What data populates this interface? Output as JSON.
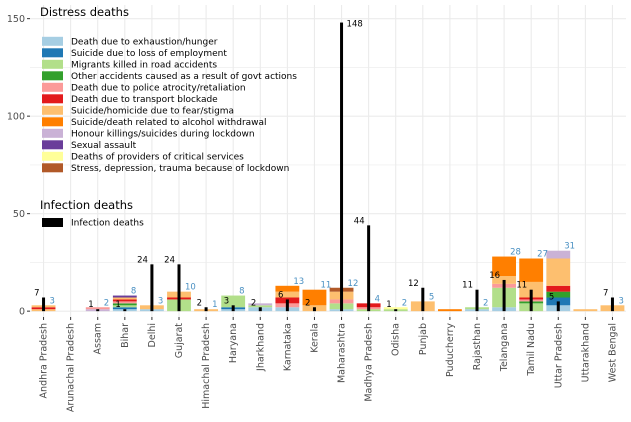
{
  "chart_data": {
    "type": "bar",
    "subtype": "stacked bar with overlaid line bars",
    "y_ticks": [
      0,
      50,
      100,
      150
    ],
    "ylim": [
      -3,
      157
    ],
    "grid": true,
    "states": [
      "Andhra Pradesh",
      "Arunachal Pradesh",
      "Assam",
      "Bihar",
      "Delhi",
      "Gujarat",
      "Himachal Pradesh",
      "Haryana",
      "Jharkhand",
      "Karnataka",
      "Kerala",
      "Maharashtra",
      "Madhya Pradesh",
      "Odisha",
      "Punjab",
      "Puducherry",
      "Rajasthan",
      "Telangana",
      "Tamil Nadu",
      "Uttar Pradesh",
      "Uttarakhand",
      "West Bengal"
    ],
    "distress_legend_title": "Distress deaths",
    "infection_legend_title": "Infection deaths",
    "infection_legend_label": "Infection deaths",
    "categories": [
      {
        "label": "Death due to exhaustion/hunger",
        "color": "#a6cee3"
      },
      {
        "label": "Suicide due to loss of employment",
        "color": "#1f78b4"
      },
      {
        "label": "Migrants killed in road accidents",
        "color": "#b2df8a"
      },
      {
        "label": "Other accidents caused as a result of govt actions",
        "color": "#33a02c"
      },
      {
        "label": "Death due to police atrocity/retaliation",
        "color": "#fb9a99"
      },
      {
        "label": "Death due to transport blockade",
        "color": "#e31a1c"
      },
      {
        "label": "Suicide/homicide due to fear/stigma",
        "color": "#fdbf6f"
      },
      {
        "label": "Suicide/death related to alcohol withdrawal",
        "color": "#ff7f00"
      },
      {
        "label": "Honour killings/suicides during lockdown",
        "color": "#cab2d6"
      },
      {
        "label": "Sexual assault",
        "color": "#6a3d9a"
      },
      {
        "label": "Deaths of providers of critical services",
        "color": "#ffff99"
      },
      {
        "label": "Stress, depression, trauma because of lockdown",
        "color": "#b15928"
      }
    ],
    "distress_series": [
      {
        "state": "Andhra Pradesh",
        "total": 3,
        "total_label": "3",
        "segments": [
          [
            6,
            1
          ],
          [
            5,
            1
          ],
          [
            6,
            1
          ]
        ]
      },
      {
        "state": "Arunachal Pradesh",
        "total": 0,
        "total_label": "",
        "segments": []
      },
      {
        "state": "Assam",
        "total": 2,
        "total_label": "2",
        "segments": [
          [
            8,
            1
          ],
          [
            4,
            1
          ]
        ]
      },
      {
        "state": "Bihar",
        "total": 8,
        "total_label": "8",
        "segments": [
          [
            0,
            1
          ],
          [
            1,
            1
          ],
          [
            2,
            1
          ],
          [
            3,
            1
          ],
          [
            4,
            1
          ],
          [
            5,
            1
          ],
          [
            6,
            1
          ],
          [
            9,
            1
          ]
        ]
      },
      {
        "state": "Delhi",
        "total": 3,
        "total_label": "3",
        "segments": [
          [
            0,
            1
          ],
          [
            6,
            2
          ]
        ]
      },
      {
        "state": "Gujarat",
        "total": 10,
        "total_label": "10",
        "segments": [
          [
            2,
            6
          ],
          [
            5,
            1
          ],
          [
            6,
            3
          ]
        ]
      },
      {
        "state": "Himachal Pradesh",
        "total": 1,
        "total_label": "1",
        "segments": [
          [
            6,
            1
          ]
        ]
      },
      {
        "state": "Haryana",
        "total": 8,
        "total_label": "8",
        "segments": [
          [
            0,
            1
          ],
          [
            1,
            1
          ],
          [
            2,
            6
          ]
        ]
      },
      {
        "state": "Jharkhand",
        "total": 4,
        "total_label": "",
        "segments": [
          [
            0,
            2
          ],
          [
            2,
            1
          ],
          [
            8,
            1
          ]
        ]
      },
      {
        "state": "Karnataka",
        "total": 13,
        "total_label": "13",
        "segments": [
          [
            0,
            2
          ],
          [
            4,
            2
          ],
          [
            5,
            3
          ],
          [
            6,
            3
          ],
          [
            7,
            3
          ]
        ]
      },
      {
        "state": "Kerala",
        "total": 11,
        "total_label": "11",
        "segments": [
          [
            6,
            3
          ],
          [
            7,
            8
          ]
        ]
      },
      {
        "state": "Maharashtra",
        "total": 12,
        "total_label": "12",
        "segments": [
          [
            0,
            1
          ],
          [
            2,
            3
          ],
          [
            4,
            2
          ],
          [
            6,
            4
          ],
          [
            11,
            2
          ]
        ]
      },
      {
        "state": "Madhya Pradesh",
        "total": 4,
        "total_label": "4",
        "segments": [
          [
            2,
            1
          ],
          [
            4,
            1
          ],
          [
            5,
            2
          ]
        ]
      },
      {
        "state": "Odisha",
        "total": 2,
        "total_label": "2",
        "segments": [
          [
            2,
            1
          ],
          [
            10,
            1
          ]
        ]
      },
      {
        "state": "Punjab",
        "total": 5,
        "total_label": "5",
        "segments": [
          [
            6,
            5
          ]
        ]
      },
      {
        "state": "Puducherry",
        "total": 1,
        "total_label": "",
        "segments": [
          [
            7,
            1
          ]
        ]
      },
      {
        "state": "Rajasthan",
        "total": 2,
        "total_label": "2",
        "segments": [
          [
            0,
            1
          ],
          [
            2,
            1
          ]
        ]
      },
      {
        "state": "Telangana",
        "total": 28,
        "total_label": "28",
        "segments": [
          [
            0,
            2
          ],
          [
            2,
            10
          ],
          [
            4,
            2
          ],
          [
            6,
            4
          ],
          [
            7,
            10
          ]
        ]
      },
      {
        "state": "Tamil Nadu",
        "total": 27,
        "total_label": "27",
        "segments": [
          [
            2,
            4
          ],
          [
            3,
            1
          ],
          [
            4,
            1
          ],
          [
            5,
            1
          ],
          [
            6,
            8
          ],
          [
            7,
            12
          ]
        ]
      },
      {
        "state": "Uttar Pradesh",
        "total": 31,
        "total_label": "31",
        "segments": [
          [
            0,
            3
          ],
          [
            1,
            4
          ],
          [
            3,
            3
          ],
          [
            5,
            3
          ],
          [
            6,
            14
          ],
          [
            8,
            4
          ]
        ]
      },
      {
        "state": "Uttarakhand",
        "total": 1,
        "total_label": "",
        "segments": [
          [
            6,
            1
          ]
        ]
      },
      {
        "state": "West Bengal",
        "total": 3,
        "total_label": "3",
        "segments": [
          [
            6,
            3
          ]
        ]
      }
    ],
    "infection_series": [
      {
        "state": "Andhra Pradesh",
        "value": 7,
        "label": "7"
      },
      {
        "state": "Arunachal Pradesh",
        "value": 0,
        "label": ""
      },
      {
        "state": "Assam",
        "value": 1,
        "label": "1"
      },
      {
        "state": "Bihar",
        "value": 1,
        "label": "1"
      },
      {
        "state": "Delhi",
        "value": 24,
        "label": "24"
      },
      {
        "state": "Gujarat",
        "value": 24,
        "label": "24"
      },
      {
        "state": "Himachal Pradesh",
        "value": 2,
        "label": "2"
      },
      {
        "state": "Haryana",
        "value": 3,
        "label": "3"
      },
      {
        "state": "Jharkhand",
        "value": 2,
        "label": "2"
      },
      {
        "state": "Karnataka",
        "value": 6,
        "label": "6"
      },
      {
        "state": "Kerala",
        "value": 2,
        "label": "2"
      },
      {
        "state": "Maharashtra",
        "value": 148,
        "label": "148"
      },
      {
        "state": "Madhya Pradesh",
        "value": 44,
        "label": "44"
      },
      {
        "state": "Odisha",
        "value": 1,
        "label": "1"
      },
      {
        "state": "Punjab",
        "value": 12,
        "label": "12"
      },
      {
        "state": "Puducherry",
        "value": 0,
        "label": ""
      },
      {
        "state": "Rajasthan",
        "value": 11,
        "label": "11"
      },
      {
        "state": "Telangana",
        "value": 16,
        "label": "16"
      },
      {
        "state": "Tamil Nadu",
        "value": 11,
        "label": "11"
      },
      {
        "state": "Uttar Pradesh",
        "value": 5,
        "label": "5"
      },
      {
        "state": "Uttarakhand",
        "value": 0,
        "label": ""
      },
      {
        "state": "West Bengal",
        "value": 7,
        "label": "7"
      }
    ],
    "colors": {
      "panel_bg": "#ffffff",
      "grid_major": "#ebebeb",
      "infection_bar": "#000000",
      "distress_label": "#4a90c2",
      "infection_label": "#000000"
    }
  }
}
